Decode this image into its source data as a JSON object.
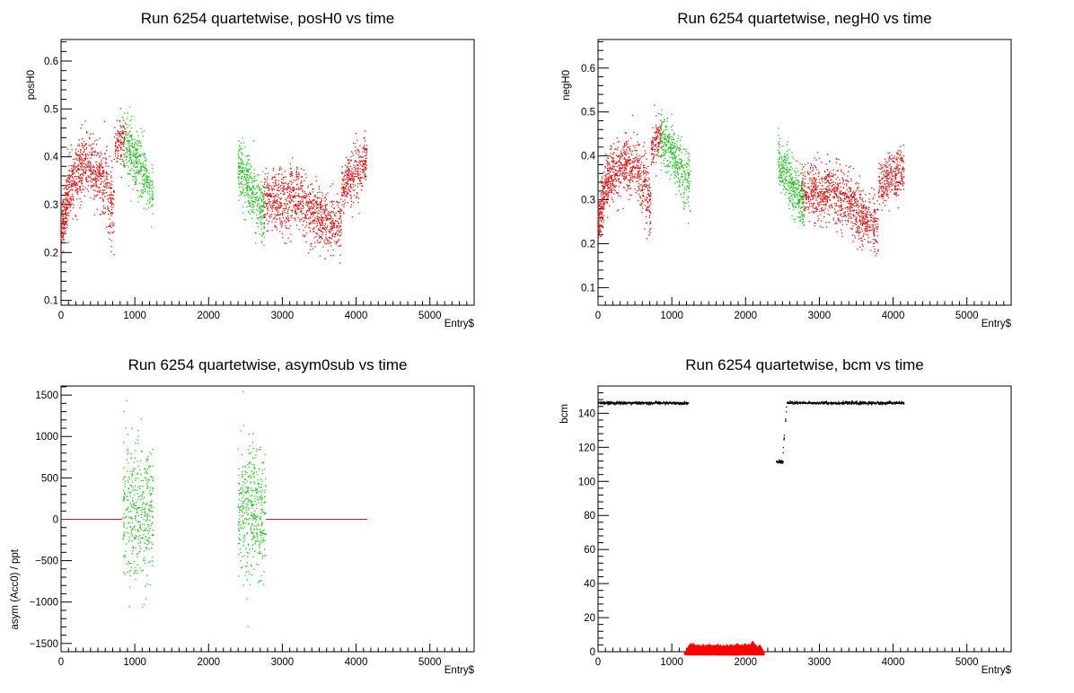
{
  "chart_data": [
    {
      "type": "scatter",
      "title": "Run 6254 quartetwise, posH0 vs time",
      "xlabel": "Entry$",
      "ylabel": "posH0",
      "xlim": [
        0,
        5600
      ],
      "ylim": [
        0.09,
        0.645
      ],
      "xticks": [
        0,
        1000,
        2000,
        3000,
        4000,
        5000
      ],
      "yticks": [
        0.1,
        0.2,
        0.3,
        0.4,
        0.5,
        0.6
      ],
      "grid": false,
      "series": [
        {
          "color": "#e01010",
          "segments": [
            {
              "xs": [
                0,
                90
              ],
              "ys": [
                0.24,
                0.32
              ],
              "spread": 0.06,
              "n": 150
            },
            {
              "xs": [
                90,
                300
              ],
              "ys": [
                0.33,
                0.38
              ],
              "spread": 0.07,
              "n": 250
            },
            {
              "xs": [
                300,
                560
              ],
              "ys": [
                0.38,
                0.36
              ],
              "spread": 0.07,
              "n": 250
            },
            {
              "xs": [
                560,
                720
              ],
              "ys": [
                0.36,
                0.28
              ],
              "spread": 0.09,
              "n": 160
            },
            {
              "xs": [
                720,
                860
              ],
              "ys": [
                0.42,
                0.44
              ],
              "spread": 0.06,
              "n": 120
            },
            {
              "xs": [
                2740,
                3100
              ],
              "ys": [
                0.31,
                0.3
              ],
              "spread": 0.07,
              "n": 330
            },
            {
              "xs": [
                3100,
                3500
              ],
              "ys": [
                0.33,
                0.27
              ],
              "spread": 0.07,
              "n": 380
            },
            {
              "xs": [
                3500,
                3800
              ],
              "ys": [
                0.27,
                0.25
              ],
              "spread": 0.07,
              "n": 280
            },
            {
              "xs": [
                3800,
                4150
              ],
              "ys": [
                0.33,
                0.39
              ],
              "spread": 0.06,
              "n": 320
            }
          ]
        },
        {
          "color": "#20c020",
          "segments": [
            {
              "xs": [
                850,
                1250
              ],
              "ys": [
                0.44,
                0.33
              ],
              "spread": 0.07,
              "n": 380
            },
            {
              "xs": [
                2400,
                2760
              ],
              "ys": [
                0.38,
                0.28
              ],
              "spread": 0.07,
              "n": 380
            }
          ]
        }
      ]
    },
    {
      "type": "scatter",
      "title": "Run 6254 quartetwise, negH0 vs time",
      "xlabel": "Entry$",
      "ylabel": "negH0",
      "xlim": [
        0,
        5600
      ],
      "ylim": [
        0.06,
        0.665
      ],
      "xticks": [
        0,
        1000,
        2000,
        3000,
        4000,
        5000
      ],
      "yticks": [
        0.1,
        0.2,
        0.3,
        0.4,
        0.5,
        0.6
      ],
      "grid": false,
      "series": [
        {
          "color": "#e01010",
          "segments": [
            {
              "xs": [
                0,
                90
              ],
              "ys": [
                0.25,
                0.31
              ],
              "spread": 0.06,
              "n": 150
            },
            {
              "xs": [
                90,
                300
              ],
              "ys": [
                0.33,
                0.38
              ],
              "spread": 0.07,
              "n": 250
            },
            {
              "xs": [
                300,
                560
              ],
              "ys": [
                0.38,
                0.37
              ],
              "spread": 0.07,
              "n": 250
            },
            {
              "xs": [
                560,
                720
              ],
              "ys": [
                0.36,
                0.29
              ],
              "spread": 0.09,
              "n": 160
            },
            {
              "xs": [
                720,
                860
              ],
              "ys": [
                0.42,
                0.44
              ],
              "spread": 0.06,
              "n": 120
            },
            {
              "xs": [
                2760,
                3100
              ],
              "ys": [
                0.32,
                0.31
              ],
              "spread": 0.07,
              "n": 330
            },
            {
              "xs": [
                3100,
                3500
              ],
              "ys": [
                0.33,
                0.28
              ],
              "spread": 0.07,
              "n": 380
            },
            {
              "xs": [
                3500,
                3800
              ],
              "ys": [
                0.27,
                0.24
              ],
              "spread": 0.07,
              "n": 280
            },
            {
              "xs": [
                3800,
                4150
              ],
              "ys": [
                0.33,
                0.37
              ],
              "spread": 0.06,
              "n": 320
            }
          ]
        },
        {
          "color": "#20c020",
          "segments": [
            {
              "xs": [
                850,
                1250
              ],
              "ys": [
                0.45,
                0.33
              ],
              "spread": 0.07,
              "n": 380
            },
            {
              "xs": [
                2440,
                2800
              ],
              "ys": [
                0.39,
                0.29
              ],
              "spread": 0.07,
              "n": 380
            }
          ]
        }
      ]
    },
    {
      "type": "scatter",
      "title": "Run 6254 quartetwise, asym0sub vs time",
      "xlabel": "Entry$",
      "ylabel": "asym (Acc0) / ppt",
      "xlim": [
        0,
        5600
      ],
      "ylim": [
        -1600,
        1610
      ],
      "xticks": [
        0,
        1000,
        2000,
        3000,
        4000,
        5000
      ],
      "yticks": [
        -1500,
        -1000,
        -500,
        0,
        500,
        1000,
        1500
      ],
      "grid": false,
      "series": [
        {
          "color": "#e01010",
          "segments": [
            {
              "xs": [
                0,
                830
              ],
              "ys": [
                0,
                0
              ],
              "spread": 0,
              "n": 0,
              "line": true
            },
            {
              "xs": [
                2780,
                4150
              ],
              "ys": [
                0,
                0
              ],
              "spread": 0,
              "n": 0,
              "line": true
            }
          ]
        },
        {
          "color": "#20c020",
          "segments": [
            {
              "xs": [
                840,
                1250
              ],
              "ys": [
                100,
                50
              ],
              "spread": 900,
              "n": 420
            },
            {
              "xs": [
                2400,
                2780
              ],
              "ys": [
                100,
                50
              ],
              "spread": 900,
              "n": 420
            }
          ]
        }
      ]
    },
    {
      "type": "scatter",
      "title": "Run 6254 quartetwise, bcm vs time",
      "xlabel": "Entry$",
      "ylabel": "bcm",
      "xlim": [
        0,
        5600
      ],
      "ylim": [
        0,
        156
      ],
      "xticks": [
        0,
        1000,
        2000,
        3000,
        4000,
        5000
      ],
      "yticks": [
        0,
        20,
        40,
        60,
        80,
        100,
        120,
        140
      ],
      "grid": false,
      "series": [
        {
          "color": "#000000",
          "segments": [
            {
              "xs": [
                0,
                1230
              ],
              "ys": [
                146,
                146
              ],
              "spread": 1.2,
              "n": 600,
              "line": true
            },
            {
              "xs": [
                2420,
                2510
              ],
              "ys": [
                111.5,
                111.5
              ],
              "spread": 1.0,
              "n": 40
            },
            {
              "xs": [
                2500,
                2560
              ],
              "ys": [
                112,
                146
              ],
              "spread": 3,
              "n": 14
            },
            {
              "xs": [
                2560,
                4150
              ],
              "ys": [
                146,
                146
              ],
              "spread": 1.2,
              "n": 700,
              "line": true
            }
          ]
        },
        {
          "color": "#ff0000",
          "segments": [
            {
              "xs": [
                1230,
                2200
              ],
              "ys": [
                0.4,
                0.4
              ],
              "spread": 1.6,
              "n": 260,
              "markers": "triangle"
            }
          ]
        }
      ]
    }
  ]
}
